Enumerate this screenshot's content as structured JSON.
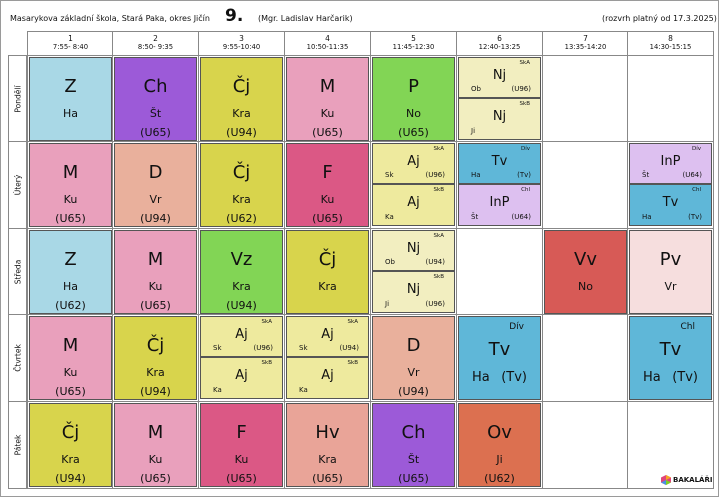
{
  "header": {
    "school": "Masarykova základní škola, Stará Paka, okres Jičín",
    "class_name": "9.",
    "teacher": "(Mgr. Ladislav Harčarik)",
    "valid_from": "(rozvrh platný od 17.3.2025)"
  },
  "periods": [
    {
      "num": "1",
      "time": "7:55- 8:40"
    },
    {
      "num": "2",
      "time": "8:50- 9:35"
    },
    {
      "num": "3",
      "time": "9:55-10:40"
    },
    {
      "num": "4",
      "time": "10:50-11:35"
    },
    {
      "num": "5",
      "time": "11:45-12:30"
    },
    {
      "num": "6",
      "time": "12:40-13:25"
    },
    {
      "num": "7",
      "time": "13:35-14:20"
    },
    {
      "num": "8",
      "time": "14:30-15:15"
    }
  ],
  "days": [
    "Pondělí",
    "Úterý",
    "Středa",
    "Čtvrtek",
    "Pátek"
  ],
  "colors": {
    "Z": "#a9d8e6",
    "Ch": "#9c5ad8",
    "Čj": "#d8d44c",
    "M": "#e9a0bc",
    "P": "#82d555",
    "Nj": "#f2eec0",
    "D": "#e9b09c",
    "F": "#db5885",
    "Aj": "#eeea9e",
    "Tv": "#5fb7d8",
    "InP": "#ddc0f0",
    "Vz": "#82d555",
    "Vv": "#d75a56",
    "Pv": "#f6dede",
    "Hv": "#e9a498",
    "Ov": "#dc7050"
  },
  "schedule": [
    [
      {
        "type": "single",
        "subject": "Z",
        "teacher": "Ha",
        "room": ""
      },
      {
        "type": "single",
        "subject": "Ch",
        "teacher": "Št",
        "room": "(U65)"
      },
      {
        "type": "single",
        "subject": "Čj",
        "teacher": "Kra",
        "room": "(U94)"
      },
      {
        "type": "single",
        "subject": "M",
        "teacher": "Ku",
        "room": "(U65)"
      },
      {
        "type": "single",
        "subject": "P",
        "teacher": "No",
        "room": "(U65)"
      },
      {
        "type": "split",
        "parts": [
          {
            "subject": "Nj",
            "group": "SkA",
            "teacher": "Ob",
            "room": "(U96)"
          },
          {
            "subject": "Nj",
            "group": "SkB",
            "teacher": "Ji",
            "room": ""
          }
        ]
      },
      {
        "type": "empty"
      },
      {
        "type": "empty"
      }
    ],
    [
      {
        "type": "single",
        "subject": "M",
        "teacher": "Ku",
        "room": "(U65)"
      },
      {
        "type": "single",
        "subject": "D",
        "teacher": "Vr",
        "room": "(U94)"
      },
      {
        "type": "single",
        "subject": "Čj",
        "teacher": "Kra",
        "room": "(U62)"
      },
      {
        "type": "single",
        "subject": "F",
        "teacher": "Ku",
        "room": "(U65)"
      },
      {
        "type": "split",
        "parts": [
          {
            "subject": "Aj",
            "group": "SkA",
            "teacher": "Sk",
            "room": "(U96)"
          },
          {
            "subject": "Aj",
            "group": "SkB",
            "teacher": "Ka",
            "room": ""
          }
        ]
      },
      {
        "type": "split",
        "parts": [
          {
            "subject": "Tv",
            "group": "Dív",
            "teacher": "Ha",
            "room": "(Tv)"
          },
          {
            "subject": "InP",
            "group": "Chl",
            "teacher": "Št",
            "room": "(U64)"
          }
        ]
      },
      {
        "type": "empty"
      },
      {
        "type": "split",
        "parts": [
          {
            "subject": "InP",
            "group": "Dív",
            "teacher": "Št",
            "room": "(U64)"
          },
          {
            "subject": "Tv",
            "group": "Chl",
            "teacher": "Ha",
            "room": "(Tv)"
          }
        ]
      }
    ],
    [
      {
        "type": "single",
        "subject": "Z",
        "teacher": "Ha",
        "room": "(U62)"
      },
      {
        "type": "single",
        "subject": "M",
        "teacher": "Ku",
        "room": "(U65)"
      },
      {
        "type": "single",
        "subject": "Vz",
        "teacher": "Kra",
        "room": "(U94)"
      },
      {
        "type": "single",
        "subject": "Čj",
        "teacher": "Kra",
        "room": ""
      },
      {
        "type": "split",
        "parts": [
          {
            "subject": "Nj",
            "group": "SkA",
            "teacher": "Ob",
            "room": "(U94)"
          },
          {
            "subject": "Nj",
            "group": "SkB",
            "teacher": "Ji",
            "room": "(U96)"
          }
        ]
      },
      {
        "type": "empty"
      },
      {
        "type": "single",
        "subject": "Vv",
        "teacher": "No",
        "room": ""
      },
      {
        "type": "single",
        "subject": "Pv",
        "teacher": "Vr",
        "room": ""
      }
    ],
    [
      {
        "type": "single",
        "subject": "M",
        "teacher": "Ku",
        "room": "(U65)"
      },
      {
        "type": "single",
        "subject": "Čj",
        "teacher": "Kra",
        "room": "(U94)"
      },
      {
        "type": "split",
        "parts": [
          {
            "subject": "Aj",
            "group": "SkA",
            "teacher": "Sk",
            "room": "(U96)"
          },
          {
            "subject": "Aj",
            "group": "SkB",
            "teacher": "Ka",
            "room": ""
          }
        ]
      },
      {
        "type": "split",
        "parts": [
          {
            "subject": "Aj",
            "group": "SkA",
            "teacher": "Sk",
            "room": "(U94)"
          },
          {
            "subject": "Aj",
            "group": "SkB",
            "teacher": "Ka",
            "room": ""
          }
        ]
      },
      {
        "type": "single",
        "subject": "D",
        "teacher": "Vr",
        "room": "(U94)"
      },
      {
        "type": "group",
        "subject": "Tv",
        "group": "Dív",
        "teacher": "Ha",
        "room": "(Tv)"
      },
      {
        "type": "empty"
      },
      {
        "type": "group",
        "subject": "Tv",
        "group": "Chl",
        "teacher": "Ha",
        "room": "(Tv)"
      }
    ],
    [
      {
        "type": "single",
        "subject": "Čj",
        "teacher": "Kra",
        "room": "(U94)"
      },
      {
        "type": "single",
        "subject": "M",
        "teacher": "Ku",
        "room": "(U65)"
      },
      {
        "type": "single",
        "subject": "F",
        "teacher": "Ku",
        "room": "(U65)"
      },
      {
        "type": "single",
        "subject": "Hv",
        "teacher": "Kra",
        "room": "(U65)"
      },
      {
        "type": "single",
        "subject": "Ch",
        "teacher": "Št",
        "room": "(U65)"
      },
      {
        "type": "single",
        "subject": "Ov",
        "teacher": "Ji",
        "room": "(U62)"
      },
      {
        "type": "empty"
      },
      {
        "type": "empty"
      }
    ]
  ],
  "footer": {
    "logo_text": "BAKALÁŘI"
  }
}
